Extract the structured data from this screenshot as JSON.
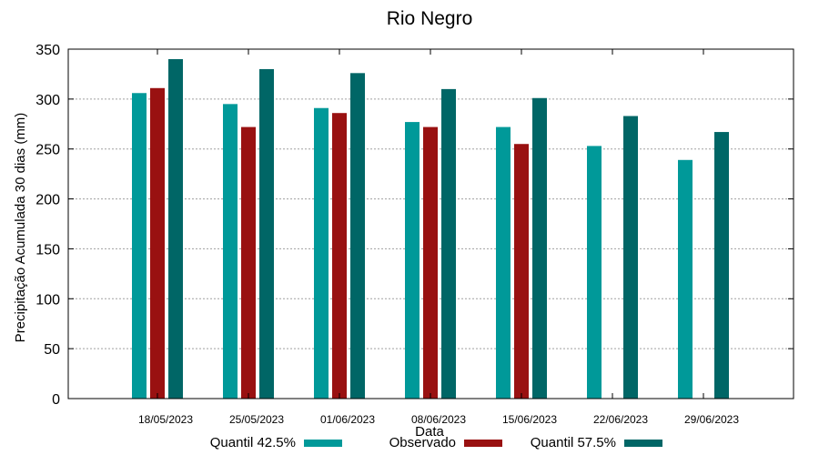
{
  "chart_data": {
    "type": "bar",
    "title": "Rio Negro",
    "xlabel": "Data",
    "ylabel": "Precipitação Acumulada 30 dias (mm)",
    "ylim": [
      0,
      350
    ],
    "yticks": [
      0,
      50,
      100,
      150,
      200,
      250,
      300,
      350
    ],
    "grid": true,
    "legend_position": "bottom",
    "categories": [
      "18/05/2023",
      "25/05/2023",
      "01/06/2023",
      "08/06/2023",
      "15/06/2023",
      "22/06/2023",
      "29/06/2023"
    ],
    "series": [
      {
        "name": "Quantil 42.5%",
        "color": "#009999",
        "values": [
          306,
          295,
          291,
          277,
          272,
          253,
          239
        ]
      },
      {
        "name": "Observado",
        "color": "#991111",
        "values": [
          311,
          272,
          286,
          272,
          255,
          null,
          null
        ]
      },
      {
        "name": "Quantil 57.5%",
        "color": "#006666",
        "values": [
          340,
          330,
          326,
          310,
          301,
          283,
          267
        ]
      }
    ]
  }
}
